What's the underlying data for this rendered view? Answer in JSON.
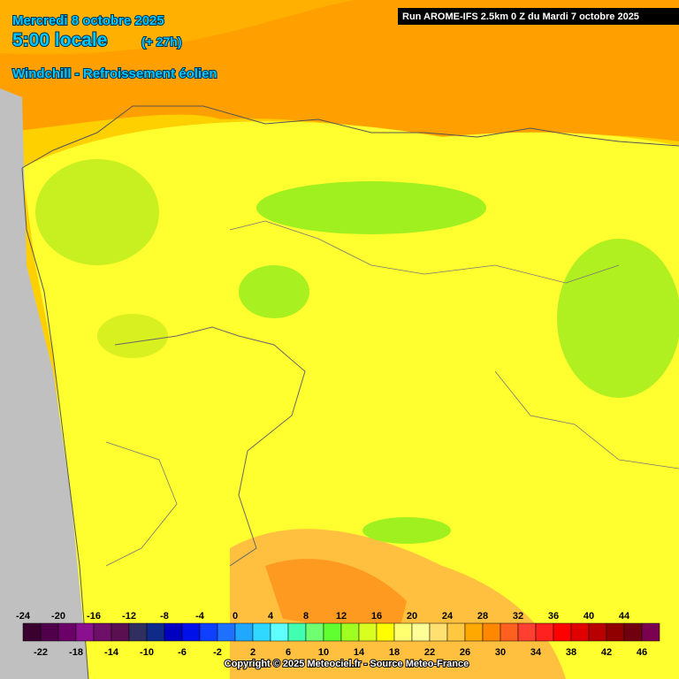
{
  "header": {
    "date": "Mercredi 8 octobre 2025",
    "time": "5:00 locale",
    "offset": "(+ 27h)",
    "parameter": "Windchill - Refroissement éolien",
    "run": "Run AROME-IFS 2.5km 0 Z du Mardi 7 octobre 2025"
  },
  "legend": {
    "labels": [
      -24,
      -22,
      -20,
      -18,
      -16,
      -14,
      -12,
      -10,
      -8,
      -6,
      -4,
      -2,
      0,
      2,
      4,
      6,
      8,
      10,
      12,
      14,
      16,
      18,
      20,
      22,
      24,
      26,
      28,
      30,
      32,
      34,
      36,
      38,
      40,
      42,
      44,
      46
    ],
    "colors": [
      "#3a0030",
      "#50004a",
      "#6a0068",
      "#8a1090",
      "#6e1068",
      "#5a1050",
      "#303060",
      "#102a8a",
      "#0000c0",
      "#0010e8",
      "#1040ff",
      "#1e70ff",
      "#20a8ff",
      "#30d8ff",
      "#60ffff",
      "#40ffb0",
      "#70ff70",
      "#60ff30",
      "#a0ff20",
      "#d8ff20",
      "#ffff00",
      "#ffff70",
      "#ffff98",
      "#ffe070",
      "#ffc840",
      "#ffa800",
      "#ff8800",
      "#ff6020",
      "#ff4030",
      "#ff2020",
      "#ff0000",
      "#e00000",
      "#b80000",
      "#900000",
      "#700010",
      "#7a0050"
    ]
  },
  "footer": {
    "copyright": "Copyright © 2025 Meteociel.fr - Source Meteo-France"
  }
}
